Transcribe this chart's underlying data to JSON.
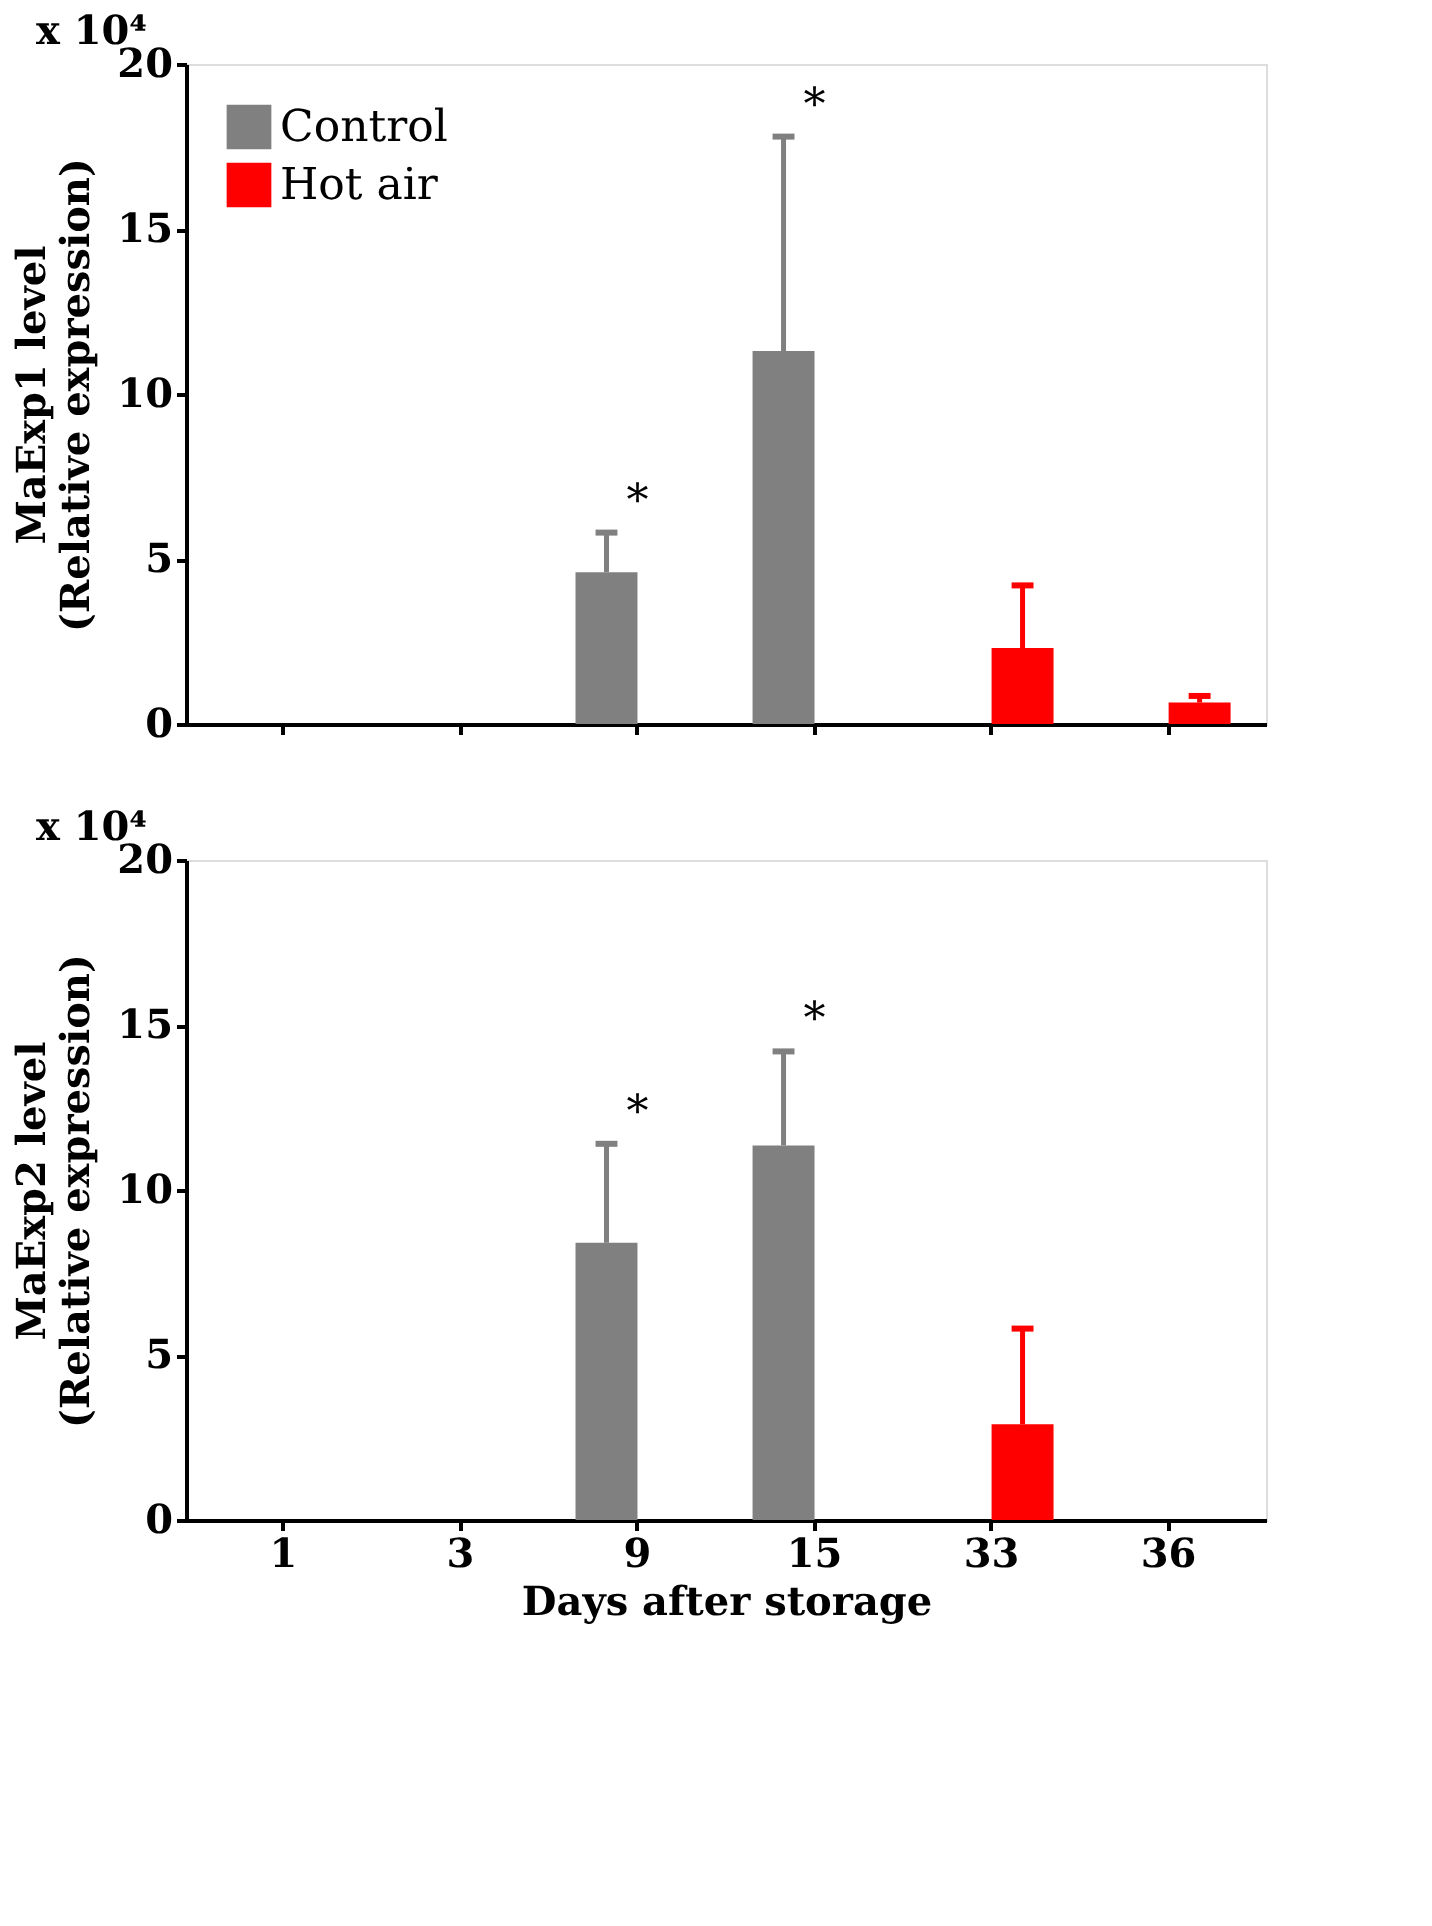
{
  "chart_data": [
    {
      "type": "bar",
      "ylabel": "MaExp1 level\n(Relative expression)",
      "categories": [
        "1",
        "3",
        "9",
        "15",
        "33",
        "36"
      ],
      "series": [
        {
          "name": "Control",
          "color": "#808080",
          "values": [
            0,
            0,
            4.6,
            11.3,
            0,
            0
          ],
          "errors": [
            null,
            null,
            [
              4.6,
              5.8
            ],
            [
              11.3,
              17.8
            ],
            null,
            null
          ]
        },
        {
          "name": "Hot air",
          "color": "#ff0000",
          "values": [
            0,
            0,
            0,
            0,
            2.3,
            0.65
          ],
          "errors": [
            null,
            null,
            null,
            null,
            [
              2.3,
              4.2
            ],
            [
              0.65,
              0.85
            ]
          ]
        }
      ],
      "ylim": [
        0,
        20
      ],
      "yticks": [
        0,
        5,
        10,
        15,
        20
      ],
      "grid": false,
      "legend": "top left",
      "tick_labels": "y",
      "annotations": [
        "x 10⁴",
        "*",
        "*"
      ]
    },
    {
      "type": "bar",
      "ylabel": "MaExp2 level\n(Relative expression)",
      "xlabel": "Days after storage",
      "categories": [
        "1",
        "3",
        "9",
        "15",
        "33",
        "36"
      ],
      "series": [
        {
          "name": "Control",
          "color": "#808080",
          "values": [
            0,
            0,
            8.4,
            11.35,
            0,
            0
          ],
          "errors": [
            null,
            null,
            [
              8.4,
              11.4
            ],
            [
              11.35,
              14.2
            ],
            null,
            null
          ]
        },
        {
          "name": "Hot air",
          "color": "#ff0000",
          "values": [
            0,
            0,
            0,
            0,
            2.9,
            0
          ],
          "errors": [
            null,
            null,
            null,
            null,
            [
              2.9,
              5.8
            ],
            null
          ]
        }
      ],
      "ylim": [
        0,
        20
      ],
      "yticks": [
        0,
        5,
        10,
        15,
        20
      ],
      "grid": false,
      "legend": "top left",
      "annotations": [
        "x 10⁴",
        "*",
        "*"
      ]
    }
  ]
}
